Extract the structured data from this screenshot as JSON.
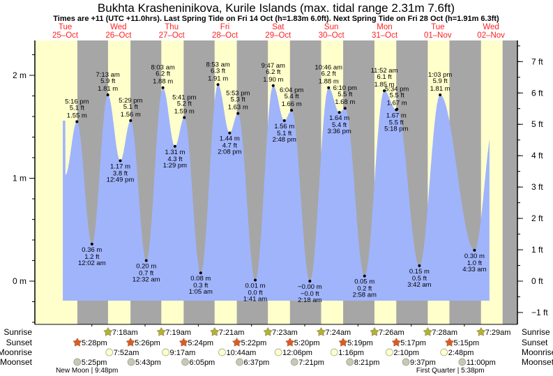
{
  "title": "Bukhta Krasheninikova, Kurile Islands (max. tidal range 2.31m 7.6ft)",
  "subtitle": "Times are +11 (UTC +11.0hrs). Last Spring Tide on Fri 14 Oct (h=1.83m 6.0ft). Next Spring Tide on Fri 28 Oct (h=1.91m 6.3ft)",
  "colors": {
    "day": "#ffffcc",
    "night": "#a6a6a6",
    "water": "#a0b4fc",
    "date": "#ff2020",
    "sunrise": "#b5b030",
    "sunset": "#e05a20",
    "moonrise": "#ffffcc",
    "moonset": "#c8c8b4"
  },
  "chart_data": {
    "type": "area",
    "title": "Bukhta Krasheninikova, Kurile Islands (max. tidal range 2.31m 7.6ft)",
    "ylabel_left": "m",
    "ylabel_right": "ft",
    "ylim_m": [
      -0.45,
      2.35
    ],
    "left_ticks": [
      {
        "v": 2,
        "label": "2 m"
      },
      {
        "v": 1,
        "label": "1 m"
      },
      {
        "v": 0,
        "label": "0 m"
      }
    ],
    "right_ticks": [
      {
        "v": 7,
        "label": "7 ft"
      },
      {
        "v": 6,
        "label": "6 ft"
      },
      {
        "v": 5,
        "label": "5 ft"
      },
      {
        "v": 4,
        "label": "4 ft"
      },
      {
        "v": 3,
        "label": "3 ft"
      },
      {
        "v": 2,
        "label": "2 ft"
      },
      {
        "v": 1,
        "label": "1 ft"
      },
      {
        "v": 0,
        "label": "0 ft"
      },
      {
        "v": -1,
        "label": "−1 ft"
      }
    ],
    "days": [
      {
        "weekday": "Tue",
        "date": "25–Oct"
      },
      {
        "weekday": "Wed",
        "date": "26–Oct"
      },
      {
        "weekday": "Thu",
        "date": "27–Oct"
      },
      {
        "weekday": "Fri",
        "date": "28–Oct"
      },
      {
        "weekday": "Sat",
        "date": "29–Oct"
      },
      {
        "weekday": "Sun",
        "date": "30–Oct"
      },
      {
        "weekday": "Mon",
        "date": "31–Oct"
      },
      {
        "weekday": "Tue",
        "date": "01–Nov"
      },
      {
        "weekday": "Wed",
        "date": "02–Nov"
      }
    ],
    "tides": [
      {
        "day": 0,
        "type": "high",
        "time": "5:16 pm",
        "ft": "5.1 ft",
        "m": "1.55 m",
        "h": 1.55
      },
      {
        "day": 1,
        "type": "low",
        "time": "12:02 am",
        "ft": "1.2 ft",
        "m": "0.36 m",
        "h": 0.36
      },
      {
        "day": 1,
        "type": "high",
        "time": "7:13 am",
        "ft": "5.9 ft",
        "m": "1.81 m",
        "h": 1.81
      },
      {
        "day": 1,
        "type": "low",
        "time": "12:49 pm",
        "ft": "3.8 ft",
        "m": "1.17 m",
        "h": 1.17
      },
      {
        "day": 1,
        "type": "high",
        "time": "5:29 pm",
        "ft": "5.1 ft",
        "m": "1.56 m",
        "h": 1.56
      },
      {
        "day": 2,
        "type": "low",
        "time": "12:32 am",
        "ft": "0.7 ft",
        "m": "0.20 m",
        "h": 0.2
      },
      {
        "day": 2,
        "type": "high",
        "time": "8:03 am",
        "ft": "6.2 ft",
        "m": "1.88 m",
        "h": 1.88
      },
      {
        "day": 2,
        "type": "low",
        "time": "1:29 pm",
        "ft": "4.3 ft",
        "m": "1.31 m",
        "h": 1.31
      },
      {
        "day": 2,
        "type": "high",
        "time": "5:41 pm",
        "ft": "5.2 ft",
        "m": "1.59 m",
        "h": 1.59
      },
      {
        "day": 3,
        "type": "low",
        "time": "1:05 am",
        "ft": "0.3 ft",
        "m": "0.08 m",
        "h": 0.08
      },
      {
        "day": 3,
        "type": "high",
        "time": "8:53 am",
        "ft": "6.3 ft",
        "m": "1.91 m",
        "h": 1.91
      },
      {
        "day": 3,
        "type": "low",
        "time": "2:08 pm",
        "ft": "4.7 ft",
        "m": "1.44 m",
        "h": 1.44
      },
      {
        "day": 3,
        "type": "high",
        "time": "5:53 pm",
        "ft": "5.3 ft",
        "m": "1.63 m",
        "h": 1.63
      },
      {
        "day": 4,
        "type": "low",
        "time": "1:41 am",
        "ft": "0.0 ft",
        "m": "0.01 m",
        "h": 0.01
      },
      {
        "day": 4,
        "type": "high",
        "time": "9:47 am",
        "ft": "6.2 ft",
        "m": "1.90 m",
        "h": 1.9
      },
      {
        "day": 4,
        "type": "low",
        "time": "2:48 pm",
        "ft": "5.1 ft",
        "m": "1.56 m",
        "h": 1.56
      },
      {
        "day": 4,
        "type": "high",
        "time": "6:04 pm",
        "ft": "5.4 ft",
        "m": "1.66 m",
        "h": 1.66
      },
      {
        "day": 5,
        "type": "low",
        "time": "2:18 am",
        "ft": "−0.0 ft",
        "m": "−0.00 m",
        "h": 0.0
      },
      {
        "day": 5,
        "type": "high",
        "time": "10:46 am",
        "ft": "6.2 ft",
        "m": "1.88 m",
        "h": 1.88
      },
      {
        "day": 5,
        "type": "low",
        "time": "3:36 pm",
        "ft": "5.4 ft",
        "m": "1.64 m",
        "h": 1.64
      },
      {
        "day": 5,
        "type": "high",
        "time": "6:10 pm",
        "ft": "5.5 ft",
        "m": "1.68 m",
        "h": 1.68
      },
      {
        "day": 6,
        "type": "low",
        "time": "2:58 am",
        "ft": "0.2 ft",
        "m": "0.05 m",
        "h": 0.05
      },
      {
        "day": 6,
        "type": "high",
        "time": "11:52 am",
        "ft": "6.1 ft",
        "m": "1.85 m",
        "h": 1.85
      },
      {
        "day": 6,
        "type": "low",
        "time": "5:18 pm",
        "ft": "5.5 ft",
        "m": "1.67 m",
        "h": 1.665
      },
      {
        "day": 6,
        "type": "high",
        "time": "5:34 pm",
        "ft": "5.5 ft",
        "m": "1.67 m",
        "h": 1.67
      },
      {
        "day": 7,
        "type": "low",
        "time": "3:42 am",
        "ft": "0.5 ft",
        "m": "0.15 m",
        "h": 0.15
      },
      {
        "day": 7,
        "type": "high",
        "time": "1:03 pm",
        "ft": "5.9 ft",
        "m": "1.81 m",
        "h": 1.81
      },
      {
        "day": 8,
        "type": "low",
        "time": "4:33 am",
        "ft": "1.0 ft",
        "m": "0.30 m",
        "h": 0.3
      }
    ],
    "unlabeled_extremes_hours_h": [
      [
        12.0,
        1.03
      ],
      [
        205.5,
        1.56
      ]
    ],
    "data_range_hours": [
      10.9,
      203.3
    ]
  },
  "rows": {
    "sunrise_label": "Sunrise",
    "sunset_label": "Sunset",
    "moonrise_label": "Moonrise",
    "moonset_label": "Moonset",
    "sunrise": [
      {
        "day": 1,
        "time": "7:18am"
      },
      {
        "day": 2,
        "time": "7:19am"
      },
      {
        "day": 3,
        "time": "7:21am"
      },
      {
        "day": 4,
        "time": "7:23am"
      },
      {
        "day": 5,
        "time": "7:24am"
      },
      {
        "day": 6,
        "time": "7:26am"
      },
      {
        "day": 7,
        "time": "7:28am"
      },
      {
        "day": 8,
        "time": "7:29am"
      }
    ],
    "sunset": [
      {
        "day": 0,
        "time": "5:28pm"
      },
      {
        "day": 1,
        "time": "5:26pm"
      },
      {
        "day": 2,
        "time": "5:24pm"
      },
      {
        "day": 3,
        "time": "5:22pm"
      },
      {
        "day": 4,
        "time": "5:20pm"
      },
      {
        "day": 5,
        "time": "5:19pm"
      },
      {
        "day": 6,
        "time": "5:17pm"
      },
      {
        "day": 7,
        "time": "5:15pm"
      }
    ],
    "moonrise": [
      {
        "day": 1,
        "time": "7:52am"
      },
      {
        "day": 2,
        "time": "9:17am"
      },
      {
        "day": 3,
        "time": "10:44am"
      },
      {
        "day": 4,
        "time": "12:06pm"
      },
      {
        "day": 5,
        "time": "1:16pm"
      },
      {
        "day": 6,
        "time": "2:10pm"
      },
      {
        "day": 7,
        "time": "2:48pm"
      }
    ],
    "moonset": [
      {
        "day": 0,
        "time": "5:25pm"
      },
      {
        "day": 1,
        "time": "5:43pm"
      },
      {
        "day": 2,
        "time": "6:05pm"
      },
      {
        "day": 3,
        "time": "6:37pm"
      },
      {
        "day": 4,
        "time": "7:21pm"
      },
      {
        "day": 5,
        "time": "8:21pm"
      },
      {
        "day": 6,
        "time": "9:37pm"
      },
      {
        "day": 7,
        "time": "11:00pm"
      }
    ],
    "phases": [
      {
        "day": 0,
        "time": "9:48pm",
        "label": "New Moon | 9:48pm"
      },
      {
        "day": 7,
        "time": "5:38pm",
        "label": "First Quarter | 5:38pm"
      }
    ]
  }
}
